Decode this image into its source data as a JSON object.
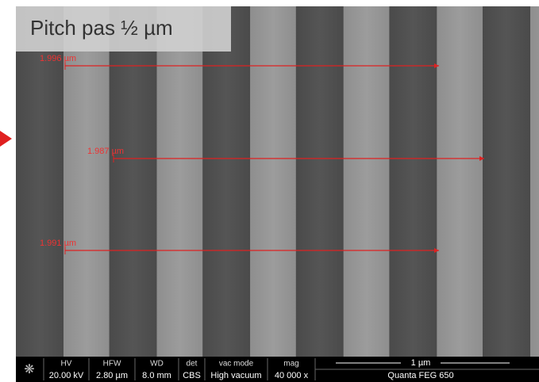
{
  "title": "Pitch pas ½ µm",
  "measurements": [
    "1.996 µm",
    "1.987 µm",
    "1.991 µm"
  ],
  "info_bar": {
    "columns": [
      {
        "header": "HV",
        "value": "20.00 kV"
      },
      {
        "header": "HFW",
        "value": "2.80 µm"
      },
      {
        "header": "WD",
        "value": "8.0 mm"
      },
      {
        "header": "det",
        "value": "CBS"
      },
      {
        "header": "vac mode",
        "value": "High vacuum"
      },
      {
        "header": "mag",
        "value": "40 000 x"
      }
    ],
    "scale_bar": "1 µm",
    "instrument": "Quanta FEG 650"
  }
}
